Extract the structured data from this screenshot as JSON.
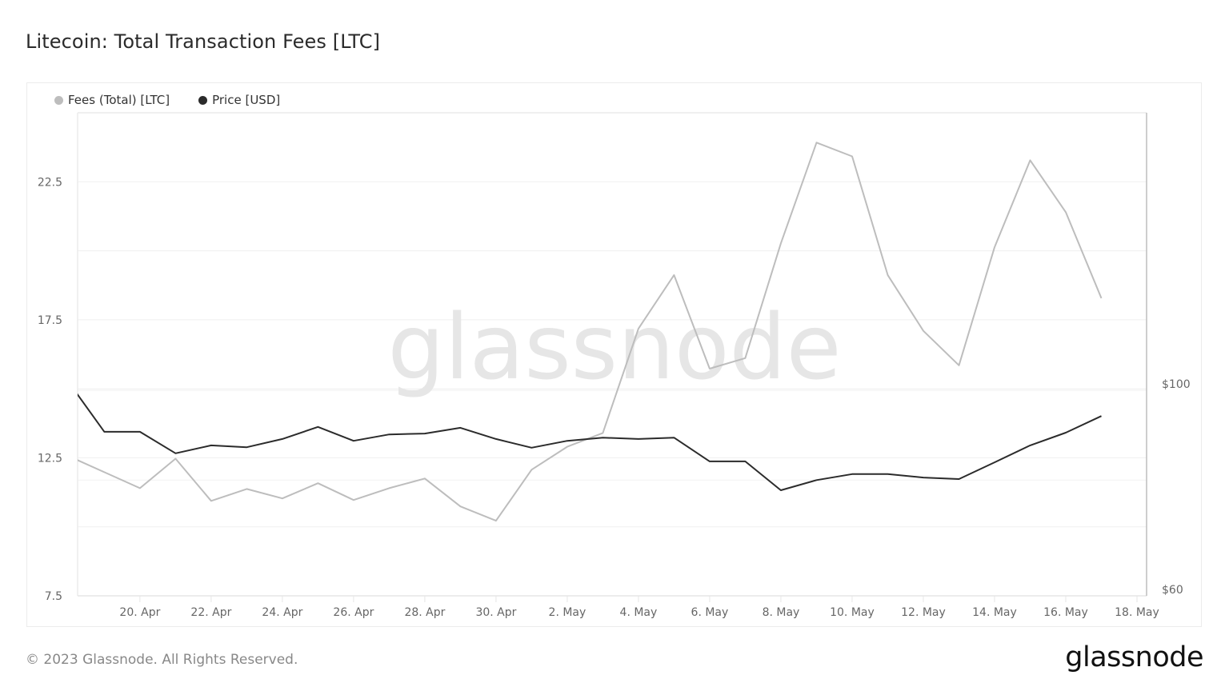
{
  "page": {
    "title": "Litecoin: Total Transaction Fees [LTC]",
    "footer_copyright": "© 2023 Glassnode. All Rights Reserved.",
    "footer_logo": "glassnode",
    "watermark": "glassnode"
  },
  "legend": [
    {
      "label": "Fees (Total) [LTC]",
      "color": "#bdbdbd"
    },
    {
      "label": "Price [USD]",
      "color": "#2b2b2b"
    }
  ],
  "chart_data": {
    "type": "line",
    "title": "Litecoin: Total Transaction Fees [LTC]",
    "xlabel": "",
    "ylabel": "Fees (Total) [LTC]",
    "y2label": "Price [USD]",
    "ylim": [
      7.5,
      25.0
    ],
    "yticks": [
      7.5,
      12.5,
      17.5,
      22.5
    ],
    "ytick_labels": [
      "7.5",
      "12.5",
      "17.5",
      "22.5"
    ],
    "y_gridlines": [
      7.5,
      10,
      12.5,
      15,
      17.5,
      20,
      22.5
    ],
    "y2_scale": "log",
    "y2lim": [
      60,
      100
    ],
    "y2ticks": [
      60,
      100
    ],
    "y2tick_labels": [
      "$60",
      "$100"
    ],
    "y2_gridlines": [
      60,
      80,
      100
    ],
    "xtick_labels": [
      "20. Apr",
      "22. Apr",
      "24. Apr",
      "26. Apr",
      "28. Apr",
      "30. Apr",
      "2. May",
      "4. May",
      "6. May",
      "8. May",
      "10. May",
      "12. May",
      "14. May",
      "16. May",
      "18. May"
    ],
    "xtick_days": [
      20,
      22,
      24,
      26,
      28,
      30,
      32,
      34,
      36,
      38,
      40,
      42,
      44,
      46,
      48
    ],
    "x_domain_days": [
      18.25,
      48.27
    ],
    "grid": true,
    "legend_position": "top-left",
    "x": [
      "18 Apr",
      "19 Apr",
      "20 Apr",
      "21 Apr",
      "22 Apr",
      "23 Apr",
      "24 Apr",
      "25 Apr",
      "26 Apr",
      "27 Apr",
      "28 Apr",
      "29 Apr",
      "30 Apr",
      "1 May",
      "2 May",
      "3 May",
      "4 May",
      "5 May",
      "6 May",
      "7 May",
      "8 May",
      "9 May",
      "10 May",
      "11 May",
      "12 May",
      "13 May",
      "14 May",
      "15 May",
      "16 May",
      "17 May"
    ],
    "x_days": [
      18,
      19,
      20,
      21,
      22,
      23,
      24,
      25,
      26,
      27,
      28,
      29,
      30,
      31,
      32,
      33,
      34,
      35,
      36,
      37,
      38,
      39,
      40,
      41,
      42,
      43,
      44,
      45,
      46,
      47
    ],
    "series": [
      {
        "name": "Fees (Total) [LTC]",
        "axis": "left",
        "color": "#bdbdbd",
        "values": [
          12.56,
          11.98,
          11.4,
          12.47,
          10.94,
          11.37,
          11.03,
          11.58,
          10.97,
          11.4,
          11.75,
          10.74,
          10.22,
          12.07,
          12.9,
          13.4,
          17.18,
          19.12,
          15.73,
          16.11,
          20.27,
          23.92,
          23.42,
          19.12,
          17.1,
          15.85,
          20.13,
          23.28,
          21.4,
          18.28
        ]
      },
      {
        "name": "Price [USD]",
        "axis": "right",
        "color": "#2b2b2b",
        "values": [
          102.0,
          90.2,
          90.2,
          85.5,
          87.2,
          86.8,
          88.6,
          91.3,
          88.2,
          89.6,
          89.8,
          91.1,
          88.6,
          86.7,
          88.2,
          88.9,
          88.6,
          88.9,
          83.8,
          83.8,
          78.0,
          80.0,
          81.2,
          81.2,
          80.5,
          80.2,
          83.6,
          87.2,
          90.0,
          93.8
        ]
      }
    ]
  }
}
